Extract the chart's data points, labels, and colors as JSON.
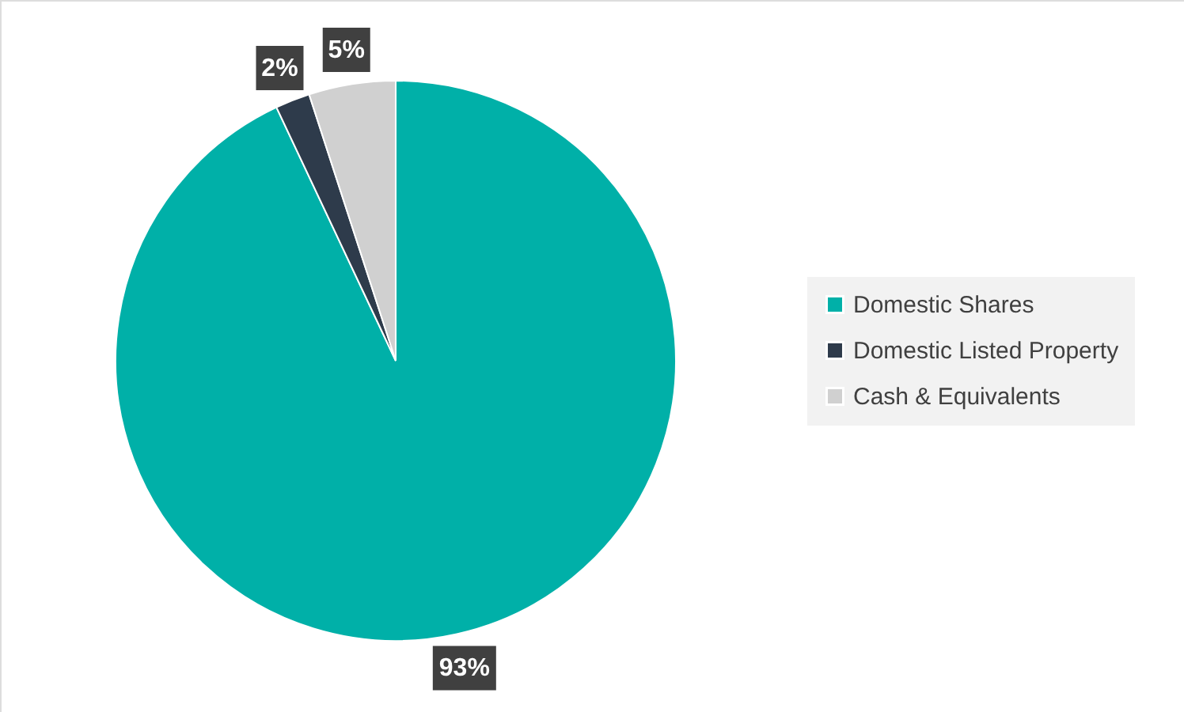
{
  "chart_data": {
    "type": "pie",
    "categories": [
      "Domestic Shares",
      "Domestic Listed Property",
      "Cash & Equivalents"
    ],
    "values": [
      93,
      2,
      5
    ],
    "colors": [
      "#00b0a8",
      "#2e3b4b",
      "#d0d0d0"
    ],
    "value_labels": [
      "93%",
      "2%",
      "5%"
    ],
    "legend": "right"
  }
}
